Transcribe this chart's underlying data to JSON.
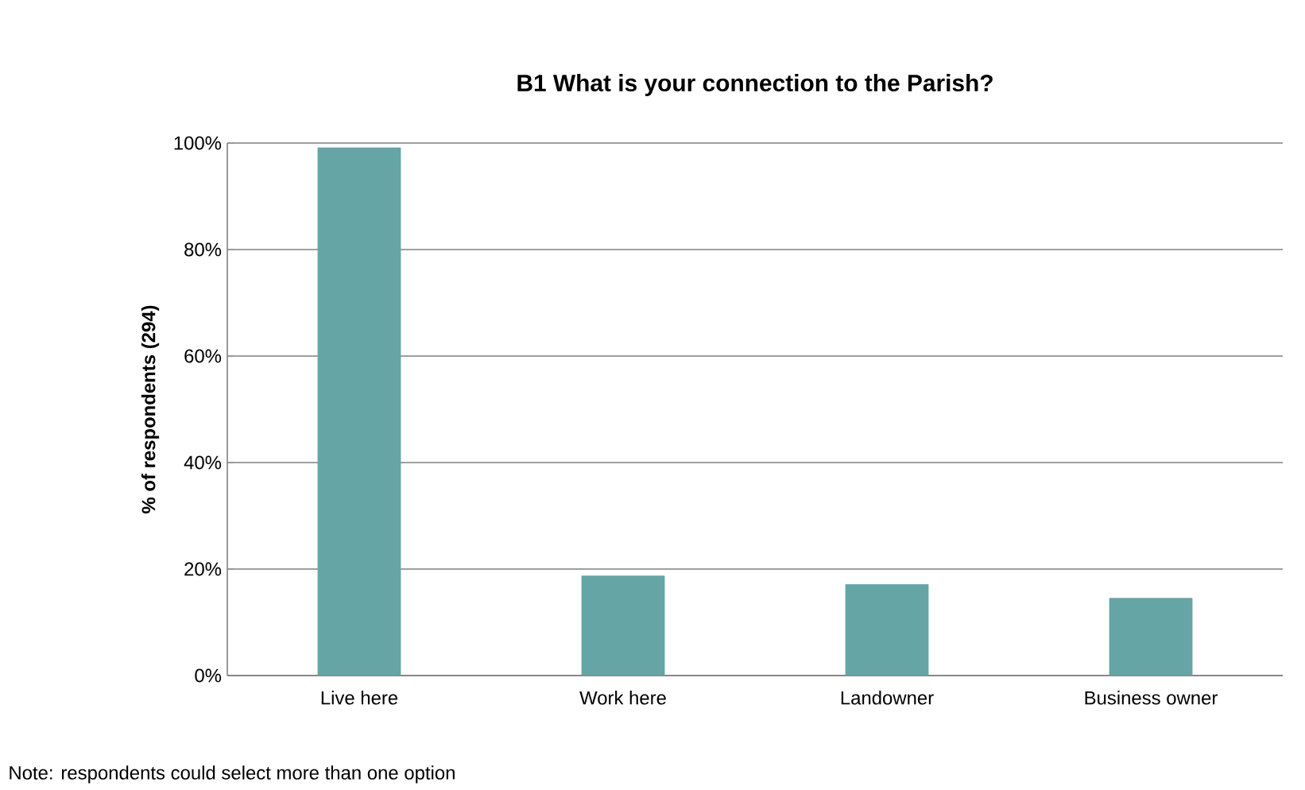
{
  "chart_data": {
    "type": "bar",
    "title": "B1 What is your connection to the Parish?",
    "ylabel": "% of respondents (294)",
    "categories": [
      "Live here",
      "Work here",
      "Landowner",
      "Business owner"
    ],
    "values": [
      99.1,
      18.7,
      17.1,
      14.5
    ],
    "color": "#65a5a6",
    "ylim": [
      0,
      100
    ],
    "yticks": [
      {
        "value": 0,
        "label": "0%"
      },
      {
        "value": 20,
        "label": "20%"
      },
      {
        "value": 40,
        "label": "40%"
      },
      {
        "value": 60,
        "label": "60%"
      },
      {
        "value": 80,
        "label": "80%"
      },
      {
        "value": 100,
        "label": "100%"
      }
    ],
    "grid": "y",
    "annotations": [
      "Note: respondents could select more than one option"
    ]
  }
}
